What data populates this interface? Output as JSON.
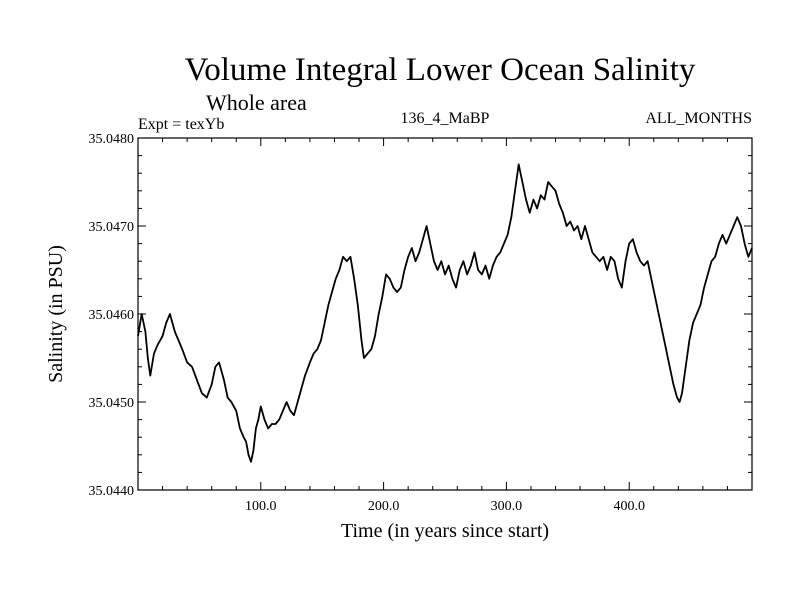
{
  "chart_data": {
    "type": "line",
    "title": "Volume Integral Lower Ocean Salinity",
    "subtitle": "Whole area",
    "left_label": "Expt = texYb",
    "center_label": "136_4_MaBP",
    "right_label": "ALL_MONTHS",
    "xlabel": "Time (in years since start)",
    "ylabel": "Salinity (in PSU)",
    "xlim": [
      0,
      500
    ],
    "ylim": [
      35.044,
      35.048
    ],
    "xticks": [
      100,
      200,
      300,
      400
    ],
    "xtick_labels": [
      "100.0",
      "200.0",
      "300.0",
      "400.0"
    ],
    "yticks": [
      35.044,
      35.045,
      35.046,
      35.047,
      35.048
    ],
    "ytick_labels": [
      "35.0440",
      "35.0450",
      "35.0460",
      "35.0470",
      "35.0480"
    ],
    "grid": false,
    "series": [
      {
        "color": "#000000",
        "points": [
          [
            0,
            35.04575
          ],
          [
            3,
            35.046
          ],
          [
            6,
            35.0458
          ],
          [
            8,
            35.0455
          ],
          [
            10,
            35.0453
          ],
          [
            13,
            35.04555
          ],
          [
            16,
            35.04565
          ],
          [
            20,
            35.04575
          ],
          [
            23,
            35.0459
          ],
          [
            26,
            35.046
          ],
          [
            30,
            35.0458
          ],
          [
            33,
            35.0457
          ],
          [
            36,
            35.0456
          ],
          [
            40,
            35.04545
          ],
          [
            44,
            35.0454
          ],
          [
            48,
            35.04525
          ],
          [
            52,
            35.0451
          ],
          [
            56,
            35.04505
          ],
          [
            60,
            35.0452
          ],
          [
            63,
            35.0454
          ],
          [
            66,
            35.04545
          ],
          [
            70,
            35.04525
          ],
          [
            73,
            35.04505
          ],
          [
            76,
            35.045
          ],
          [
            80,
            35.0449
          ],
          [
            83,
            35.0447
          ],
          [
            86,
            35.0446
          ],
          [
            88,
            35.04455
          ],
          [
            90,
            35.0444
          ],
          [
            92,
            35.04432
          ],
          [
            94,
            35.04445
          ],
          [
            96,
            35.0447
          ],
          [
            98,
            35.0448
          ],
          [
            100,
            35.04495
          ],
          [
            103,
            35.0448
          ],
          [
            106,
            35.0447
          ],
          [
            109,
            35.04475
          ],
          [
            112,
            35.04475
          ],
          [
            115,
            35.0448
          ],
          [
            118,
            35.0449
          ],
          [
            121,
            35.045
          ],
          [
            124,
            35.0449
          ],
          [
            127,
            35.04485
          ],
          [
            130,
            35.045
          ],
          [
            133,
            35.04515
          ],
          [
            136,
            35.0453
          ],
          [
            140,
            35.04545
          ],
          [
            143,
            35.04555
          ],
          [
            146,
            35.0456
          ],
          [
            149,
            35.0457
          ],
          [
            152,
            35.0459
          ],
          [
            155,
            35.0461
          ],
          [
            158,
            35.04625
          ],
          [
            161,
            35.0464
          ],
          [
            164,
            35.0465
          ],
          [
            167,
            35.04665
          ],
          [
            170,
            35.0466
          ],
          [
            173,
            35.04665
          ],
          [
            176,
            35.0464
          ],
          [
            179,
            35.0461
          ],
          [
            182,
            35.0457
          ],
          [
            184,
            35.0455
          ],
          [
            187,
            35.04555
          ],
          [
            190,
            35.0456
          ],
          [
            193,
            35.04575
          ],
          [
            196,
            35.046
          ],
          [
            199,
            35.0462
          ],
          [
            202,
            35.04645
          ],
          [
            205,
            35.0464
          ],
          [
            208,
            35.0463
          ],
          [
            211,
            35.04625
          ],
          [
            214,
            35.0463
          ],
          [
            217,
            35.0465
          ],
          [
            220,
            35.04665
          ],
          [
            223,
            35.04675
          ],
          [
            226,
            35.0466
          ],
          [
            229,
            35.0467
          ],
          [
            232,
            35.04685
          ],
          [
            235,
            35.047
          ],
          [
            238,
            35.0468
          ],
          [
            241,
            35.0466
          ],
          [
            244,
            35.0465
          ],
          [
            247,
            35.0466
          ],
          [
            250,
            35.04645
          ],
          [
            253,
            35.04655
          ],
          [
            256,
            35.0464
          ],
          [
            259,
            35.0463
          ],
          [
            262,
            35.0465
          ],
          [
            265,
            35.0466
          ],
          [
            268,
            35.04645
          ],
          [
            271,
            35.04655
          ],
          [
            274,
            35.0467
          ],
          [
            277,
            35.0465
          ],
          [
            280,
            35.04645
          ],
          [
            283,
            35.04655
          ],
          [
            286,
            35.0464
          ],
          [
            289,
            35.04655
          ],
          [
            292,
            35.04665
          ],
          [
            295,
            35.0467
          ],
          [
            298,
            35.0468
          ],
          [
            301,
            35.0469
          ],
          [
            304,
            35.0471
          ],
          [
            307,
            35.0474
          ],
          [
            310,
            35.0477
          ],
          [
            313,
            35.0475
          ],
          [
            316,
            35.0473
          ],
          [
            319,
            35.04715
          ],
          [
            322,
            35.0473
          ],
          [
            325,
            35.0472
          ],
          [
            328,
            35.04735
          ],
          [
            331,
            35.0473
          ],
          [
            334,
            35.0475
          ],
          [
            337,
            35.04745
          ],
          [
            340,
            35.0474
          ],
          [
            343,
            35.04725
          ],
          [
            346,
            35.04715
          ],
          [
            349,
            35.047
          ],
          [
            352,
            35.04705
          ],
          [
            355,
            35.04695
          ],
          [
            358,
            35.047
          ],
          [
            361,
            35.04685
          ],
          [
            364,
            35.047
          ],
          [
            367,
            35.04685
          ],
          [
            370,
            35.0467
          ],
          [
            373,
            35.04665
          ],
          [
            376,
            35.0466
          ],
          [
            379,
            35.04665
          ],
          [
            382,
            35.0465
          ],
          [
            385,
            35.04665
          ],
          [
            388,
            35.0466
          ],
          [
            391,
            35.0464
          ],
          [
            394,
            35.0463
          ],
          [
            397,
            35.0466
          ],
          [
            400,
            35.0468
          ],
          [
            403,
            35.04685
          ],
          [
            406,
            35.0467
          ],
          [
            409,
            35.0466
          ],
          [
            412,
            35.04655
          ],
          [
            415,
            35.0466
          ],
          [
            418,
            35.0464
          ],
          [
            421,
            35.0462
          ],
          [
            424,
            35.046
          ],
          [
            427,
            35.0458
          ],
          [
            430,
            35.0456
          ],
          [
            433,
            35.0454
          ],
          [
            436,
            35.0452
          ],
          [
            439,
            35.04505
          ],
          [
            441,
            35.045
          ],
          [
            443,
            35.0451
          ],
          [
            446,
            35.0454
          ],
          [
            449,
            35.0457
          ],
          [
            452,
            35.0459
          ],
          [
            455,
            35.046
          ],
          [
            458,
            35.0461
          ],
          [
            461,
            35.0463
          ],
          [
            464,
            35.04645
          ],
          [
            467,
            35.0466
          ],
          [
            470,
            35.04665
          ],
          [
            473,
            35.0468
          ],
          [
            476,
            35.0469
          ],
          [
            479,
            35.0468
          ],
          [
            482,
            35.0469
          ],
          [
            485,
            35.047
          ],
          [
            488,
            35.0471
          ],
          [
            491,
            35.047
          ],
          [
            494,
            35.0468
          ],
          [
            497,
            35.04665
          ],
          [
            500,
            35.04675
          ]
        ]
      }
    ]
  }
}
